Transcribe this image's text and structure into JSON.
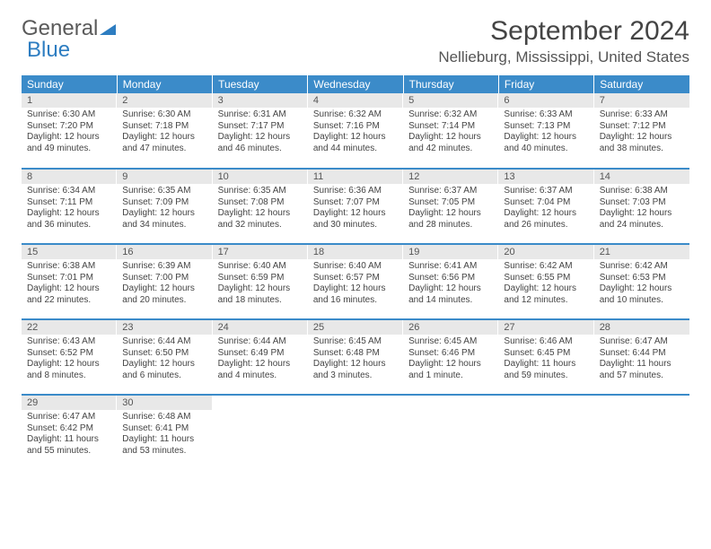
{
  "brand": {
    "part1": "General",
    "part2": "Blue"
  },
  "title": "September 2024",
  "location": "Nellieburg, Mississippi, United States",
  "colors": {
    "header_bg": "#3b8bc9",
    "header_text": "#ffffff",
    "daynum_bg": "#e8e8e8",
    "border": "#3b8bc9",
    "body_text": "#444444",
    "brand_gray": "#5a5a5a",
    "brand_blue": "#2d7dc1"
  },
  "weekdays": [
    "Sunday",
    "Monday",
    "Tuesday",
    "Wednesday",
    "Thursday",
    "Friday",
    "Saturday"
  ],
  "weeks": [
    [
      {
        "n": "1",
        "sr": "Sunrise: 6:30 AM",
        "ss": "Sunset: 7:20 PM",
        "dl1": "Daylight: 12 hours",
        "dl2": "and 49 minutes."
      },
      {
        "n": "2",
        "sr": "Sunrise: 6:30 AM",
        "ss": "Sunset: 7:18 PM",
        "dl1": "Daylight: 12 hours",
        "dl2": "and 47 minutes."
      },
      {
        "n": "3",
        "sr": "Sunrise: 6:31 AM",
        "ss": "Sunset: 7:17 PM",
        "dl1": "Daylight: 12 hours",
        "dl2": "and 46 minutes."
      },
      {
        "n": "4",
        "sr": "Sunrise: 6:32 AM",
        "ss": "Sunset: 7:16 PM",
        "dl1": "Daylight: 12 hours",
        "dl2": "and 44 minutes."
      },
      {
        "n": "5",
        "sr": "Sunrise: 6:32 AM",
        "ss": "Sunset: 7:14 PM",
        "dl1": "Daylight: 12 hours",
        "dl2": "and 42 minutes."
      },
      {
        "n": "6",
        "sr": "Sunrise: 6:33 AM",
        "ss": "Sunset: 7:13 PM",
        "dl1": "Daylight: 12 hours",
        "dl2": "and 40 minutes."
      },
      {
        "n": "7",
        "sr": "Sunrise: 6:33 AM",
        "ss": "Sunset: 7:12 PM",
        "dl1": "Daylight: 12 hours",
        "dl2": "and 38 minutes."
      }
    ],
    [
      {
        "n": "8",
        "sr": "Sunrise: 6:34 AM",
        "ss": "Sunset: 7:11 PM",
        "dl1": "Daylight: 12 hours",
        "dl2": "and 36 minutes."
      },
      {
        "n": "9",
        "sr": "Sunrise: 6:35 AM",
        "ss": "Sunset: 7:09 PM",
        "dl1": "Daylight: 12 hours",
        "dl2": "and 34 minutes."
      },
      {
        "n": "10",
        "sr": "Sunrise: 6:35 AM",
        "ss": "Sunset: 7:08 PM",
        "dl1": "Daylight: 12 hours",
        "dl2": "and 32 minutes."
      },
      {
        "n": "11",
        "sr": "Sunrise: 6:36 AM",
        "ss": "Sunset: 7:07 PM",
        "dl1": "Daylight: 12 hours",
        "dl2": "and 30 minutes."
      },
      {
        "n": "12",
        "sr": "Sunrise: 6:37 AM",
        "ss": "Sunset: 7:05 PM",
        "dl1": "Daylight: 12 hours",
        "dl2": "and 28 minutes."
      },
      {
        "n": "13",
        "sr": "Sunrise: 6:37 AM",
        "ss": "Sunset: 7:04 PM",
        "dl1": "Daylight: 12 hours",
        "dl2": "and 26 minutes."
      },
      {
        "n": "14",
        "sr": "Sunrise: 6:38 AM",
        "ss": "Sunset: 7:03 PM",
        "dl1": "Daylight: 12 hours",
        "dl2": "and 24 minutes."
      }
    ],
    [
      {
        "n": "15",
        "sr": "Sunrise: 6:38 AM",
        "ss": "Sunset: 7:01 PM",
        "dl1": "Daylight: 12 hours",
        "dl2": "and 22 minutes."
      },
      {
        "n": "16",
        "sr": "Sunrise: 6:39 AM",
        "ss": "Sunset: 7:00 PM",
        "dl1": "Daylight: 12 hours",
        "dl2": "and 20 minutes."
      },
      {
        "n": "17",
        "sr": "Sunrise: 6:40 AM",
        "ss": "Sunset: 6:59 PM",
        "dl1": "Daylight: 12 hours",
        "dl2": "and 18 minutes."
      },
      {
        "n": "18",
        "sr": "Sunrise: 6:40 AM",
        "ss": "Sunset: 6:57 PM",
        "dl1": "Daylight: 12 hours",
        "dl2": "and 16 minutes."
      },
      {
        "n": "19",
        "sr": "Sunrise: 6:41 AM",
        "ss": "Sunset: 6:56 PM",
        "dl1": "Daylight: 12 hours",
        "dl2": "and 14 minutes."
      },
      {
        "n": "20",
        "sr": "Sunrise: 6:42 AM",
        "ss": "Sunset: 6:55 PM",
        "dl1": "Daylight: 12 hours",
        "dl2": "and 12 minutes."
      },
      {
        "n": "21",
        "sr": "Sunrise: 6:42 AM",
        "ss": "Sunset: 6:53 PM",
        "dl1": "Daylight: 12 hours",
        "dl2": "and 10 minutes."
      }
    ],
    [
      {
        "n": "22",
        "sr": "Sunrise: 6:43 AM",
        "ss": "Sunset: 6:52 PM",
        "dl1": "Daylight: 12 hours",
        "dl2": "and 8 minutes."
      },
      {
        "n": "23",
        "sr": "Sunrise: 6:44 AM",
        "ss": "Sunset: 6:50 PM",
        "dl1": "Daylight: 12 hours",
        "dl2": "and 6 minutes."
      },
      {
        "n": "24",
        "sr": "Sunrise: 6:44 AM",
        "ss": "Sunset: 6:49 PM",
        "dl1": "Daylight: 12 hours",
        "dl2": "and 4 minutes."
      },
      {
        "n": "25",
        "sr": "Sunrise: 6:45 AM",
        "ss": "Sunset: 6:48 PM",
        "dl1": "Daylight: 12 hours",
        "dl2": "and 3 minutes."
      },
      {
        "n": "26",
        "sr": "Sunrise: 6:45 AM",
        "ss": "Sunset: 6:46 PM",
        "dl1": "Daylight: 12 hours",
        "dl2": "and 1 minute."
      },
      {
        "n": "27",
        "sr": "Sunrise: 6:46 AM",
        "ss": "Sunset: 6:45 PM",
        "dl1": "Daylight: 11 hours",
        "dl2": "and 59 minutes."
      },
      {
        "n": "28",
        "sr": "Sunrise: 6:47 AM",
        "ss": "Sunset: 6:44 PM",
        "dl1": "Daylight: 11 hours",
        "dl2": "and 57 minutes."
      }
    ],
    [
      {
        "n": "29",
        "sr": "Sunrise: 6:47 AM",
        "ss": "Sunset: 6:42 PM",
        "dl1": "Daylight: 11 hours",
        "dl2": "and 55 minutes."
      },
      {
        "n": "30",
        "sr": "Sunrise: 6:48 AM",
        "ss": "Sunset: 6:41 PM",
        "dl1": "Daylight: 11 hours",
        "dl2": "and 53 minutes."
      },
      null,
      null,
      null,
      null,
      null
    ]
  ]
}
